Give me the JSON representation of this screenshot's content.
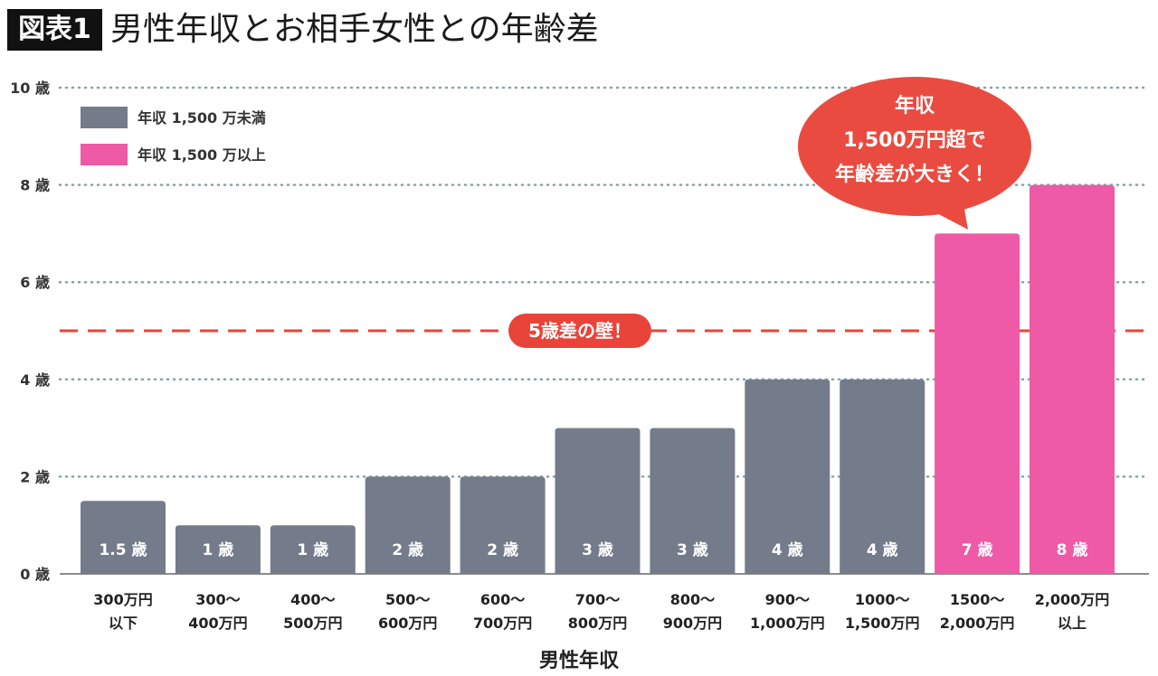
{
  "header": {
    "figure_label": "図表1"
  },
  "chart_data": {
    "type": "bar",
    "title": "男性年収とお相手女性との年齢差",
    "xlabel": "男性年収",
    "ylim": [
      0,
      10
    ],
    "y_ticks": [
      0,
      2,
      4,
      6,
      8,
      10
    ],
    "y_tick_labels": [
      "0 歳",
      "2 歳",
      "4 歳",
      "6 歳",
      "8 歳",
      "10 歳"
    ],
    "grid": true,
    "legend_position": "top-left",
    "categories": [
      [
        "300万円",
        "以下"
      ],
      [
        "300〜",
        "400万円"
      ],
      [
        "400〜",
        "500万円"
      ],
      [
        "500〜",
        "600万円"
      ],
      [
        "600〜",
        "700万円"
      ],
      [
        "700〜",
        "800万円"
      ],
      [
        "800〜",
        "900万円"
      ],
      [
        "900〜",
        "1,000万円"
      ],
      [
        "1000〜",
        "1,500万円"
      ],
      [
        "1500〜",
        "2,000万円"
      ],
      [
        "2,000万円",
        "以上"
      ]
    ],
    "series": [
      {
        "name": "年収 1,500 万未満",
        "color": "#747b8a",
        "values": [
          1.5,
          1,
          1,
          2,
          2,
          3,
          3,
          4,
          4,
          null,
          null
        ]
      },
      {
        "name": "年収 1,500 万以上",
        "color": "#ee5aa6",
        "values": [
          null,
          null,
          null,
          null,
          null,
          null,
          null,
          null,
          null,
          7,
          8
        ]
      }
    ],
    "value_labels": [
      "1.5 歳",
      "1 歳",
      "1 歳",
      "2 歳",
      "2 歳",
      "3 歳",
      "3 歳",
      "4 歳",
      "4 歳",
      "7 歳",
      "8 歳"
    ],
    "reference_line": {
      "value": 5,
      "label": "5歳差の壁！",
      "color": "#e8443a"
    },
    "callout": {
      "lines": [
        "年収",
        "1,500万円超で",
        "年齢差が大きく！"
      ],
      "color": "#ea4b40"
    }
  }
}
